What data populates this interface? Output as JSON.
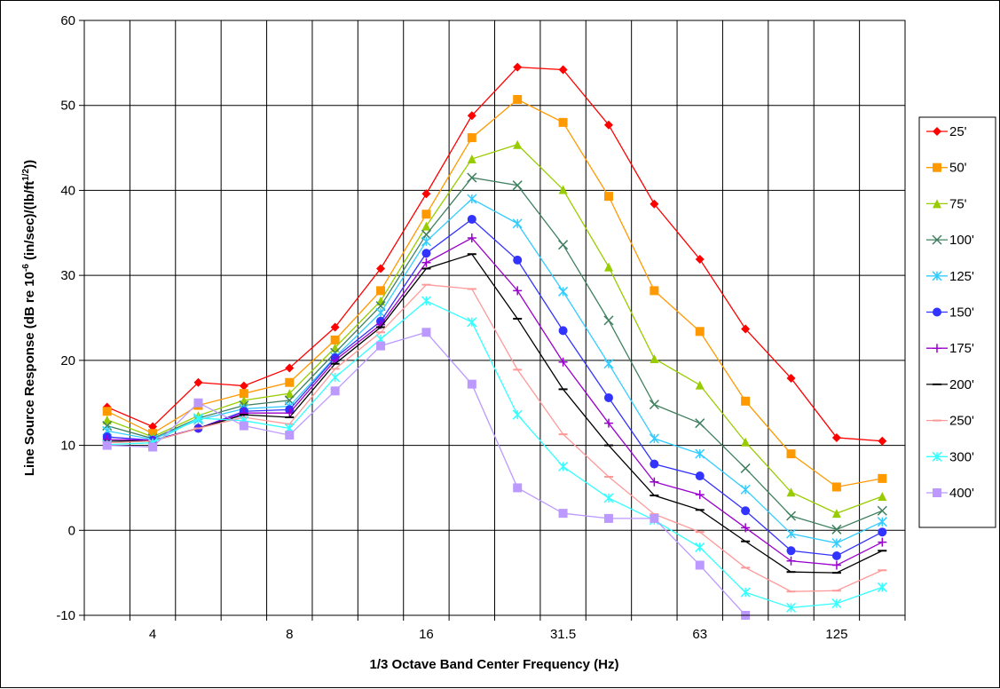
{
  "chart_data": {
    "type": "line",
    "xlabel": "1/3 Octave Band Center Frequency (Hz)",
    "ylabel_parts": {
      "a": "Line Source Response (dB re 10",
      "a_sup": "-6",
      "b": " (in/sec)/(lb/ft",
      "b_sup": "1/2",
      "c": "))"
    },
    "ylim": [
      -10,
      60
    ],
    "yticks": [
      -10,
      0,
      10,
      20,
      30,
      40,
      50,
      60
    ],
    "x": [
      3.15,
      4,
      5,
      6.3,
      8,
      10,
      12.5,
      16,
      20,
      25,
      31.5,
      40,
      50,
      63,
      80,
      100,
      125,
      160
    ],
    "x_tick_labels": [
      {
        "label": "4",
        "index": 1
      },
      {
        "label": "8",
        "index": 4
      },
      {
        "label": "16",
        "index": 7
      },
      {
        "label": "31.5",
        "index": 10
      },
      {
        "label": "63",
        "index": 13
      },
      {
        "label": "125",
        "index": 16
      }
    ],
    "grid": true,
    "legend_position": "right",
    "series": [
      {
        "name": "25'",
        "color": "#ff0000",
        "marker": "diamond",
        "values": [
          14.5,
          12.2,
          17.4,
          17.0,
          19.1,
          23.9,
          30.8,
          39.6,
          48.8,
          54.5,
          54.2,
          47.7,
          38.4,
          31.9,
          23.7,
          17.9,
          10.9,
          10.5
        ]
      },
      {
        "name": "50'",
        "color": "#ff9900",
        "marker": "square",
        "values": [
          14.0,
          11.4,
          14.7,
          16.1,
          17.4,
          22.4,
          28.2,
          37.2,
          46.2,
          50.7,
          48.0,
          39.3,
          28.2,
          23.4,
          15.2,
          9.0,
          5.1,
          6.1
        ]
      },
      {
        "name": "75'",
        "color": "#99cc00",
        "marker": "triangle",
        "values": [
          13.0,
          11.0,
          13.5,
          15.3,
          16.1,
          21.5,
          27.0,
          35.8,
          43.7,
          45.4,
          40.1,
          31.0,
          20.2,
          17.1,
          10.4,
          4.5,
          2.0,
          4.0
        ]
      },
      {
        "name": "100'",
        "color": "#408060",
        "marker": "x",
        "values": [
          12.3,
          10.8,
          13.2,
          14.7,
          15.3,
          20.9,
          26.4,
          34.8,
          41.5,
          40.6,
          33.6,
          24.7,
          14.8,
          12.6,
          7.3,
          1.7,
          0.1,
          2.3
        ]
      },
      {
        "name": "125'",
        "color": "#33ccff",
        "marker": "asterisk",
        "values": [
          11.7,
          10.7,
          13.0,
          14.3,
          14.6,
          20.4,
          25.6,
          34.0,
          39.0,
          36.1,
          28.1,
          19.6,
          10.8,
          9.0,
          4.8,
          -0.4,
          -1.5,
          1.0
        ]
      },
      {
        "name": "150'",
        "color": "#3333ff",
        "marker": "circle",
        "values": [
          11.0,
          10.6,
          12.0,
          14.0,
          14.2,
          20.3,
          24.6,
          32.6,
          36.6,
          31.8,
          23.5,
          15.6,
          7.8,
          6.4,
          2.3,
          -2.4,
          -3.0,
          -0.2
        ]
      },
      {
        "name": "175'",
        "color": "#9900cc",
        "marker": "plus",
        "values": [
          10.7,
          10.6,
          12.0,
          13.8,
          13.8,
          20.0,
          24.2,
          31.5,
          34.4,
          28.2,
          19.8,
          12.6,
          5.7,
          4.2,
          0.3,
          -3.6,
          -4.1,
          -1.4
        ]
      },
      {
        "name": "200'",
        "color": "#000000",
        "marker": "dash",
        "values": [
          10.5,
          10.5,
          12.0,
          13.6,
          13.3,
          19.6,
          23.9,
          30.8,
          32.5,
          24.9,
          16.6,
          10.0,
          4.1,
          2.4,
          -1.3,
          -4.9,
          -5.0,
          -2.4
        ]
      },
      {
        "name": "250'",
        "color": "#ff9999",
        "marker": "dash",
        "values": [
          10.3,
          10.5,
          12.0,
          13.3,
          12.5,
          19.0,
          23.3,
          28.9,
          28.4,
          18.9,
          11.3,
          6.3,
          1.9,
          -0.2,
          -4.4,
          -7.2,
          -7.1,
          -4.7
        ]
      },
      {
        "name": "300'",
        "color": "#33ffff",
        "marker": "asterisk",
        "values": [
          10.1,
          10.3,
          13.2,
          12.9,
          12.0,
          18.0,
          22.5,
          27.0,
          24.5,
          13.6,
          7.5,
          3.8,
          1.2,
          -2.0,
          -7.3,
          -9.1,
          -8.6,
          -6.7
        ]
      },
      {
        "name": "400'",
        "color": "#bb99ff",
        "marker": "square",
        "values": [
          10.0,
          9.8,
          15.0,
          12.3,
          11.2,
          16.4,
          21.7,
          23.3,
          17.2,
          5.0,
          2.0,
          1.4,
          1.4,
          -4.1,
          -10.0,
          null,
          null,
          null
        ]
      }
    ]
  }
}
